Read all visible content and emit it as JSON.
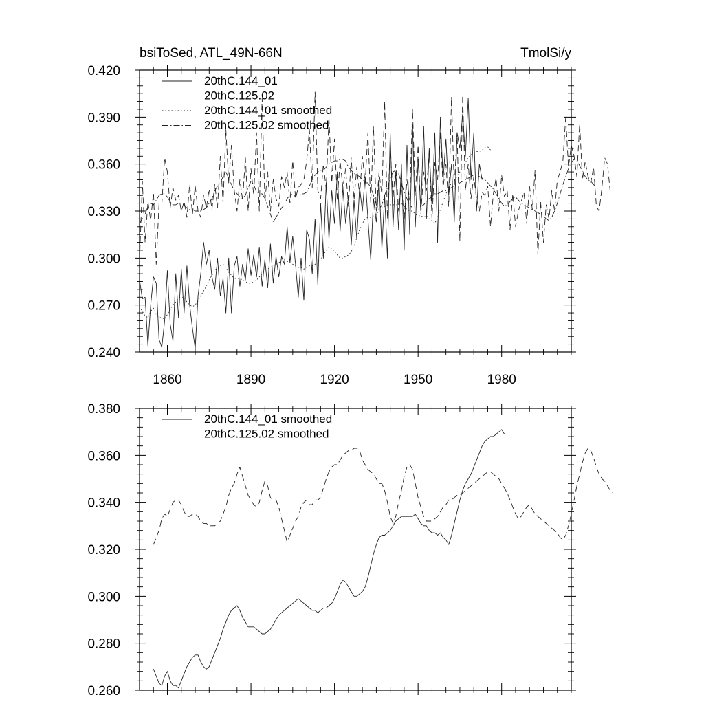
{
  "chart_data": [
    {
      "type": "line",
      "title": "bsiToSed, ATL_49N-66N",
      "units_label": "TmolSi/y",
      "xlabel": "",
      "ylabel": "",
      "xlim": [
        1850,
        2005
      ],
      "ylim": [
        0.24,
        0.42
      ],
      "x_major_ticks": [
        1860,
        1890,
        1920,
        1950,
        1980
      ],
      "x_tick_labels": [
        "1860",
        "1890",
        "1920",
        "1950",
        "1980"
      ],
      "y_major_ticks": [
        0.24,
        0.27,
        0.3,
        0.33,
        0.36,
        0.39,
        0.42
      ],
      "y_tick_labels": [
        "0.240",
        "0.270",
        "0.300",
        "0.330",
        "0.360",
        "0.390",
        "0.420"
      ],
      "legend_position": "top-left",
      "series": [
        {
          "name": "20thC.144_01",
          "style": "solid",
          "x_start": 1850,
          "x_step": 1,
          "values": [
            0.286,
            0.274,
            0.275,
            0.244,
            0.27,
            0.288,
            0.284,
            0.248,
            0.243,
            0.26,
            0.292,
            0.258,
            0.247,
            0.29,
            0.262,
            0.293,
            0.265,
            0.295,
            0.27,
            0.255,
            0.242,
            0.276,
            0.29,
            0.31,
            0.296,
            0.305,
            0.288,
            0.28,
            0.3,
            0.276,
            0.287,
            0.265,
            0.3,
            0.265,
            0.295,
            0.301,
            0.282,
            0.296,
            0.286,
            0.306,
            0.289,
            0.302,
            0.288,
            0.307,
            0.282,
            0.299,
            0.281,
            0.309,
            0.284,
            0.301,
            0.288,
            0.301,
            0.296,
            0.32,
            0.297,
            0.314,
            0.296,
            0.275,
            0.3,
            0.273,
            0.318,
            0.312,
            0.29,
            0.325,
            0.283,
            0.335,
            0.3,
            0.348,
            0.312,
            0.343,
            0.322,
            0.355,
            0.317,
            0.345,
            0.322,
            0.34,
            0.308,
            0.337,
            0.312,
            0.345,
            0.33,
            0.352,
            0.325,
            0.299,
            0.338,
            0.323,
            0.35,
            0.306,
            0.34,
            0.3,
            0.38,
            0.32,
            0.355,
            0.318,
            0.36,
            0.305,
            0.372,
            0.315,
            0.385,
            0.32,
            0.363,
            0.33,
            0.384,
            0.325,
            0.37,
            0.332,
            0.38,
            0.31,
            0.39,
            0.35,
            0.376,
            0.34,
            0.36,
            0.323,
            0.38,
            0.37,
            0.392,
            0.365,
            0.402,
            0.35,
            0.38,
            0.33,
            0.36,
            0.35
          ]
        },
        {
          "name": "20thC.125.02",
          "style": "dashed",
          "x_start": 1850,
          "x_step": 1,
          "values": [
            0.298,
            0.349,
            0.31,
            0.336,
            0.324,
            0.342,
            0.296,
            0.335,
            0.334,
            0.364,
            0.355,
            0.332,
            0.345,
            0.337,
            0.34,
            0.33,
            0.336,
            0.326,
            0.347,
            0.328,
            0.346,
            0.33,
            0.326,
            0.34,
            0.332,
            0.344,
            0.331,
            0.347,
            0.332,
            0.365,
            0.335,
            0.382,
            0.348,
            0.372,
            0.343,
            0.33,
            0.35,
            0.337,
            0.364,
            0.33,
            0.357,
            0.34,
            0.38,
            0.33,
            0.402,
            0.336,
            0.355,
            0.33,
            0.35,
            0.338,
            0.333,
            0.352,
            0.345,
            0.355,
            0.335,
            0.362,
            0.338,
            0.345,
            0.347,
            0.35,
            0.362,
            0.382,
            0.345,
            0.406,
            0.343,
            0.338,
            0.36,
            0.344,
            0.39,
            0.348,
            0.376,
            0.337,
            0.362,
            0.345,
            0.357,
            0.333,
            0.364,
            0.337,
            0.358,
            0.34,
            0.365,
            0.348,
            0.38,
            0.335,
            0.384,
            0.33,
            0.355,
            0.34,
            0.4,
            0.325,
            0.371,
            0.338,
            0.36,
            0.33,
            0.348,
            0.325,
            0.35,
            0.337,
            0.395,
            0.34,
            0.372,
            0.328,
            0.355,
            0.343,
            0.368,
            0.325,
            0.361,
            0.35,
            0.38,
            0.345,
            0.36,
            0.333,
            0.403,
            0.344,
            0.38,
            0.311,
            0.404,
            0.343,
            0.36,
            0.338,
            0.352,
            0.338,
            0.33,
            0.342,
            0.34,
            0.346,
            0.32,
            0.341,
            0.351,
            0.33,
            0.353,
            0.339,
            0.343,
            0.318,
            0.341,
            0.32,
            0.33,
            0.336,
            0.342,
            0.322,
            0.346,
            0.331,
            0.356,
            0.302,
            0.336,
            0.31,
            0.334,
            0.325,
            0.343,
            0.33,
            0.35,
            0.355,
            0.362,
            0.39,
            0.358,
            0.372,
            0.365,
            0.352,
            0.386,
            0.35,
            0.362,
            0.352,
            0.348,
            0.358,
            0.333,
            0.33,
            0.345,
            0.364,
            0.36,
            0.342
          ]
        },
        {
          "name": "20thC.144_01 smoothed",
          "style": "dotted",
          "x_start": 1850,
          "x_step": 1,
          "values": [
            0.269,
            0.266,
            0.263,
            0.262,
            0.266,
            0.268,
            0.264,
            0.262,
            0.262,
            0.261,
            0.264,
            0.267,
            0.27,
            0.272,
            0.274,
            0.275,
            0.275,
            0.272,
            0.27,
            0.269,
            0.27,
            0.273,
            0.276,
            0.279,
            0.282,
            0.286,
            0.289,
            0.292,
            0.294,
            0.295,
            0.296,
            0.294,
            0.291,
            0.289,
            0.287,
            0.287,
            0.287,
            0.286,
            0.285,
            0.284,
            0.284,
            0.285,
            0.286,
            0.288,
            0.29,
            0.292,
            0.293,
            0.294,
            0.295,
            0.296,
            0.297,
            0.298,
            0.299,
            0.298,
            0.297,
            0.296,
            0.295,
            0.294,
            0.294,
            0.293,
            0.294,
            0.295,
            0.295,
            0.296,
            0.297,
            0.299,
            0.302,
            0.305,
            0.307,
            0.306,
            0.304,
            0.302,
            0.3,
            0.3,
            0.301,
            0.302,
            0.304,
            0.308,
            0.313,
            0.318,
            0.322,
            0.325,
            0.326,
            0.326,
            0.327,
            0.328,
            0.33,
            0.332,
            0.333,
            0.334,
            0.334,
            0.334,
            0.334,
            0.334,
            0.335,
            0.333,
            0.331,
            0.33,
            0.33,
            0.328,
            0.327,
            0.327,
            0.326,
            0.327,
            0.325,
            0.324,
            0.322,
            0.326,
            0.331,
            0.336,
            0.341,
            0.345,
            0.348,
            0.35,
            0.352,
            0.355,
            0.358,
            0.361,
            0.364,
            0.366,
            0.367,
            0.368,
            0.368,
            0.369,
            0.37,
            0.371,
            0.369
          ]
        },
        {
          "name": "20thC.125.02 smoothed",
          "style": "dashdot",
          "x_start": 1850,
          "x_step": 1,
          "values": [
            0.322,
            0.325,
            0.328,
            0.333,
            0.335,
            0.334,
            0.337,
            0.34,
            0.341,
            0.341,
            0.339,
            0.336,
            0.334,
            0.334,
            0.335,
            0.335,
            0.334,
            0.332,
            0.331,
            0.331,
            0.33,
            0.33,
            0.33,
            0.331,
            0.332,
            0.335,
            0.338,
            0.343,
            0.346,
            0.348,
            0.352,
            0.355,
            0.351,
            0.347,
            0.343,
            0.341,
            0.339,
            0.338,
            0.34,
            0.345,
            0.349,
            0.347,
            0.342,
            0.341,
            0.341,
            0.338,
            0.333,
            0.328,
            0.323,
            0.326,
            0.329,
            0.332,
            0.334,
            0.338,
            0.34,
            0.341,
            0.339,
            0.339,
            0.341,
            0.341,
            0.342,
            0.346,
            0.35,
            0.353,
            0.355,
            0.356,
            0.356,
            0.358,
            0.36,
            0.361,
            0.362,
            0.362,
            0.363,
            0.363,
            0.362,
            0.358,
            0.356,
            0.354,
            0.353,
            0.352,
            0.35,
            0.348,
            0.348,
            0.345,
            0.34,
            0.334,
            0.331,
            0.334,
            0.34,
            0.345,
            0.351,
            0.355,
            0.356,
            0.354,
            0.348,
            0.342,
            0.338,
            0.334,
            0.332,
            0.332,
            0.332,
            0.333,
            0.334,
            0.336,
            0.338,
            0.339,
            0.341,
            0.341,
            0.342,
            0.343,
            0.343,
            0.344,
            0.345,
            0.346,
            0.347,
            0.348,
            0.349,
            0.35,
            0.351,
            0.352,
            0.353,
            0.353,
            0.352,
            0.351,
            0.35,
            0.348,
            0.346,
            0.344,
            0.341,
            0.338,
            0.335,
            0.333,
            0.334,
            0.336,
            0.338,
            0.339,
            0.337,
            0.335,
            0.334,
            0.333,
            0.332,
            0.331,
            0.33,
            0.329,
            0.328,
            0.327,
            0.325,
            0.324,
            0.326,
            0.33,
            0.335,
            0.341,
            0.347,
            0.352,
            0.357,
            0.361,
            0.363,
            0.362,
            0.359,
            0.355,
            0.352,
            0.35,
            0.349,
            0.347,
            0.345,
            0.344
          ]
        }
      ]
    },
    {
      "type": "line",
      "title": "",
      "xlabel": "",
      "ylabel": "",
      "xlim": [
        1850,
        2005
      ],
      "ylim": [
        0.26,
        0.38
      ],
      "x_major_ticks": [
        1860,
        1890,
        1920,
        1950,
        1980
      ],
      "y_major_ticks": [
        0.26,
        0.28,
        0.3,
        0.32,
        0.34,
        0.36,
        0.38
      ],
      "y_tick_labels": [
        "0.260",
        "0.280",
        "0.300",
        "0.320",
        "0.340",
        "0.360",
        "0.380"
      ],
      "legend_position": "top-left",
      "series": [
        {
          "name": "20thC.144_01 smoothed",
          "style": "solid",
          "x_start": 1855,
          "x_step": 1,
          "values": [
            0.269,
            0.266,
            0.263,
            0.262,
            0.266,
            0.268,
            0.264,
            0.262,
            0.262,
            0.261,
            0.264,
            0.267,
            0.27,
            0.272,
            0.274,
            0.275,
            0.275,
            0.272,
            0.27,
            0.269,
            0.27,
            0.273,
            0.276,
            0.279,
            0.282,
            0.286,
            0.289,
            0.292,
            0.294,
            0.295,
            0.296,
            0.294,
            0.291,
            0.289,
            0.287,
            0.287,
            0.287,
            0.286,
            0.285,
            0.284,
            0.284,
            0.285,
            0.286,
            0.288,
            0.29,
            0.292,
            0.293,
            0.294,
            0.295,
            0.296,
            0.297,
            0.298,
            0.299,
            0.298,
            0.297,
            0.296,
            0.295,
            0.294,
            0.294,
            0.293,
            0.294,
            0.295,
            0.295,
            0.296,
            0.297,
            0.299,
            0.302,
            0.305,
            0.307,
            0.306,
            0.304,
            0.302,
            0.3,
            0.3,
            0.301,
            0.302,
            0.304,
            0.308,
            0.313,
            0.318,
            0.322,
            0.325,
            0.326,
            0.326,
            0.327,
            0.328,
            0.33,
            0.332,
            0.333,
            0.334,
            0.334,
            0.334,
            0.334,
            0.334,
            0.335,
            0.333,
            0.331,
            0.33,
            0.33,
            0.328,
            0.327,
            0.327,
            0.326,
            0.327,
            0.325,
            0.324,
            0.322,
            0.326,
            0.331,
            0.336,
            0.341,
            0.345,
            0.348,
            0.35,
            0.352,
            0.355,
            0.358,
            0.361,
            0.364,
            0.366,
            0.367,
            0.368,
            0.368,
            0.369,
            0.37,
            0.371,
            0.369
          ]
        },
        {
          "name": "20thC.125.02 smoothed",
          "style": "dashed",
          "x_start": 1855,
          "x_step": 1,
          "values": [
            0.322,
            0.325,
            0.328,
            0.333,
            0.335,
            0.334,
            0.337,
            0.34,
            0.341,
            0.341,
            0.339,
            0.336,
            0.334,
            0.334,
            0.335,
            0.335,
            0.334,
            0.332,
            0.331,
            0.331,
            0.33,
            0.33,
            0.33,
            0.331,
            0.332,
            0.335,
            0.338,
            0.343,
            0.346,
            0.348,
            0.352,
            0.355,
            0.351,
            0.347,
            0.343,
            0.341,
            0.339,
            0.338,
            0.34,
            0.345,
            0.349,
            0.347,
            0.342,
            0.341,
            0.341,
            0.338,
            0.333,
            0.328,
            0.323,
            0.326,
            0.329,
            0.332,
            0.334,
            0.338,
            0.34,
            0.341,
            0.339,
            0.339,
            0.341,
            0.341,
            0.342,
            0.346,
            0.35,
            0.353,
            0.355,
            0.356,
            0.356,
            0.358,
            0.36,
            0.361,
            0.362,
            0.362,
            0.363,
            0.363,
            0.362,
            0.358,
            0.356,
            0.354,
            0.353,
            0.352,
            0.35,
            0.348,
            0.348,
            0.345,
            0.34,
            0.334,
            0.331,
            0.334,
            0.34,
            0.345,
            0.351,
            0.355,
            0.356,
            0.354,
            0.348,
            0.342,
            0.338,
            0.334,
            0.332,
            0.332,
            0.332,
            0.333,
            0.334,
            0.336,
            0.338,
            0.339,
            0.341,
            0.341,
            0.342,
            0.343,
            0.343,
            0.344,
            0.345,
            0.346,
            0.347,
            0.348,
            0.349,
            0.35,
            0.351,
            0.352,
            0.353,
            0.353,
            0.352,
            0.351,
            0.35,
            0.348,
            0.346,
            0.344,
            0.341,
            0.338,
            0.335,
            0.333,
            0.334,
            0.336,
            0.338,
            0.339,
            0.337,
            0.335,
            0.334,
            0.333,
            0.332,
            0.331,
            0.33,
            0.329,
            0.328,
            0.327,
            0.325,
            0.324,
            0.326,
            0.33,
            0.335,
            0.341,
            0.347,
            0.352,
            0.357,
            0.361,
            0.363,
            0.362,
            0.359,
            0.355,
            0.352,
            0.35,
            0.349,
            0.347,
            0.345,
            0.344
          ]
        }
      ]
    }
  ]
}
